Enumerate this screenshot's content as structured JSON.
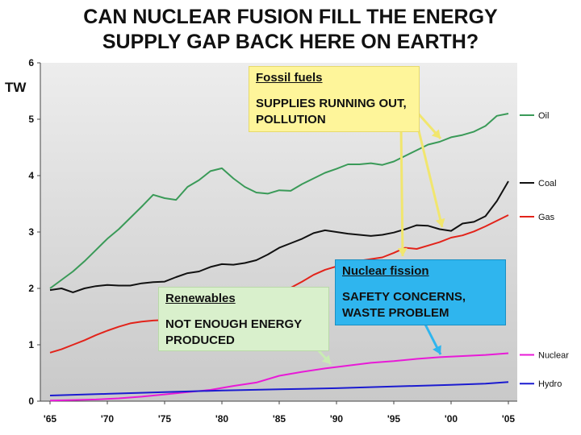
{
  "title_line1": "CAN NUCLEAR FUSION FILL THE ENERGY",
  "title_line2": "SUPPLY GAP BACK HERE ON EARTH?",
  "callouts": {
    "fossil": {
      "heading": "Fossil fuels",
      "body": "SUPPLIES RUNNING OUT, POLLUTION",
      "color": "#fef59a"
    },
    "nuclear": {
      "heading": "Nuclear fission",
      "body": "SAFETY CONCERNS, WASTE PROBLEM",
      "color": "#2fb5ee"
    },
    "renewables": {
      "heading": "Renewables",
      "body": "NOT ENOUGH ENERGY PRODUCED",
      "color": "#d9f0cc"
    }
  },
  "chart_data": {
    "type": "line",
    "ylabel": "TW",
    "xlabel": "",
    "ylim": [
      0,
      6
    ],
    "xlim": [
      1965,
      2005
    ],
    "yticks": [
      "0",
      "1",
      "2",
      "3",
      "4",
      "5",
      "6"
    ],
    "xticks": [
      "'65",
      "'70",
      "'75",
      "'80",
      "'85",
      "'90",
      "'95",
      "'00",
      "'05"
    ],
    "grid": false,
    "legend": "right",
    "series": [
      {
        "name": "Oil",
        "color": "#3a9a58",
        "x": [
          1965,
          1966,
          1967,
          1968,
          1969,
          1970,
          1971,
          1972,
          1973,
          1974,
          1975,
          1976,
          1977,
          1978,
          1979,
          1980,
          1981,
          1982,
          1983,
          1984,
          1985,
          1986,
          1987,
          1988,
          1989,
          1990,
          1991,
          1992,
          1993,
          1994,
          1995,
          1996,
          1997,
          1998,
          1999,
          2000,
          2001,
          2002,
          2003,
          2004,
          2005
        ],
        "y": [
          2.0,
          2.15,
          2.3,
          2.48,
          2.68,
          2.88,
          3.05,
          3.25,
          3.45,
          3.66,
          3.6,
          3.57,
          3.8,
          3.92,
          4.08,
          4.13,
          3.95,
          3.8,
          3.7,
          3.68,
          3.74,
          3.73,
          3.85,
          3.95,
          4.05,
          4.12,
          4.2,
          4.2,
          4.22,
          4.19,
          4.25,
          4.35,
          4.45,
          4.55,
          4.6,
          4.68,
          4.72,
          4.78,
          4.88,
          5.06,
          5.1
        ]
      },
      {
        "name": "Coal",
        "color": "#111111",
        "x": [
          1965,
          1966,
          1967,
          1968,
          1969,
          1970,
          1971,
          1972,
          1973,
          1974,
          1975,
          1976,
          1977,
          1978,
          1979,
          1980,
          1981,
          1982,
          1983,
          1984,
          1985,
          1986,
          1987,
          1988,
          1989,
          1990,
          1991,
          1992,
          1993,
          1994,
          1995,
          1996,
          1997,
          1998,
          1999,
          2000,
          2001,
          2002,
          2003,
          2004,
          2005
        ],
        "y": [
          1.97,
          2.0,
          1.93,
          2.0,
          2.04,
          2.06,
          2.05,
          2.05,
          2.09,
          2.11,
          2.12,
          2.2,
          2.27,
          2.3,
          2.38,
          2.43,
          2.42,
          2.45,
          2.5,
          2.6,
          2.72,
          2.8,
          2.88,
          2.98,
          3.03,
          3.0,
          2.97,
          2.95,
          2.93,
          2.95,
          2.99,
          3.05,
          3.12,
          3.11,
          3.05,
          3.02,
          3.15,
          3.18,
          3.28,
          3.55,
          3.9
        ]
      },
      {
        "name": "Gas",
        "color": "#e2231a",
        "x": [
          1965,
          1966,
          1967,
          1968,
          1969,
          1970,
          1971,
          1972,
          1973,
          1974,
          1975,
          1976,
          1977,
          1978,
          1979,
          1980,
          1981,
          1982,
          1983,
          1984,
          1985,
          1986,
          1987,
          1988,
          1989,
          1990,
          1991,
          1992,
          1993,
          1994,
          1995,
          1996,
          1997,
          1998,
          1999,
          2000,
          2001,
          2002,
          2003,
          2004,
          2005
        ],
        "y": [
          0.86,
          0.92,
          1.0,
          1.08,
          1.17,
          1.25,
          1.32,
          1.38,
          1.41,
          1.43,
          1.44,
          1.52,
          1.56,
          1.63,
          1.7,
          1.72,
          1.73,
          1.74,
          1.78,
          1.89,
          1.96,
          2.01,
          2.12,
          2.24,
          2.33,
          2.39,
          2.45,
          2.49,
          2.52,
          2.55,
          2.63,
          2.72,
          2.7,
          2.76,
          2.82,
          2.9,
          2.94,
          3.01,
          3.1,
          3.2,
          3.3
        ]
      },
      {
        "name": "Nuclear",
        "color": "#e81ad7",
        "x": [
          1965,
          1967,
          1969,
          1971,
          1973,
          1975,
          1977,
          1979,
          1981,
          1983,
          1985,
          1987,
          1989,
          1991,
          1993,
          1995,
          1997,
          1999,
          2001,
          2003,
          2005
        ],
        "y": [
          0.01,
          0.02,
          0.03,
          0.05,
          0.08,
          0.12,
          0.16,
          0.2,
          0.27,
          0.33,
          0.45,
          0.52,
          0.58,
          0.63,
          0.68,
          0.71,
          0.75,
          0.78,
          0.8,
          0.82,
          0.85
        ]
      },
      {
        "name": "Hydro",
        "color": "#1b1bd0",
        "x": [
          1965,
          1970,
          1975,
          1980,
          1985,
          1990,
          1995,
          2000,
          2003,
          2005
        ],
        "y": [
          0.1,
          0.13,
          0.16,
          0.19,
          0.21,
          0.23,
          0.26,
          0.29,
          0.31,
          0.34
        ]
      }
    ]
  }
}
